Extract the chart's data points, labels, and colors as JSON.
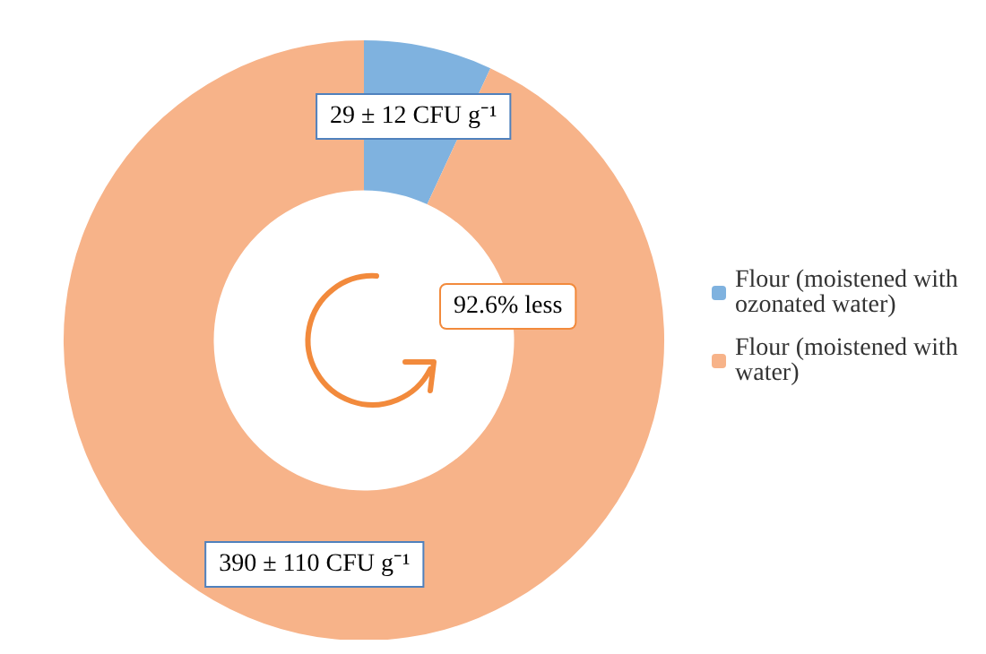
{
  "chart_data": {
    "type": "donut",
    "categories": [
      "Flour (moistened with ozonated water)",
      "Flour (moistened with water)"
    ],
    "values": [
      29,
      390
    ],
    "colors": [
      "#7fb2df",
      "#f7b389"
    ],
    "value_labels": [
      "29 ± 12 CFU g⁻¹",
      "390 ± 110 CFU g⁻¹"
    ],
    "annotations": [
      "92.6% less"
    ],
    "legend": "right"
  }
}
